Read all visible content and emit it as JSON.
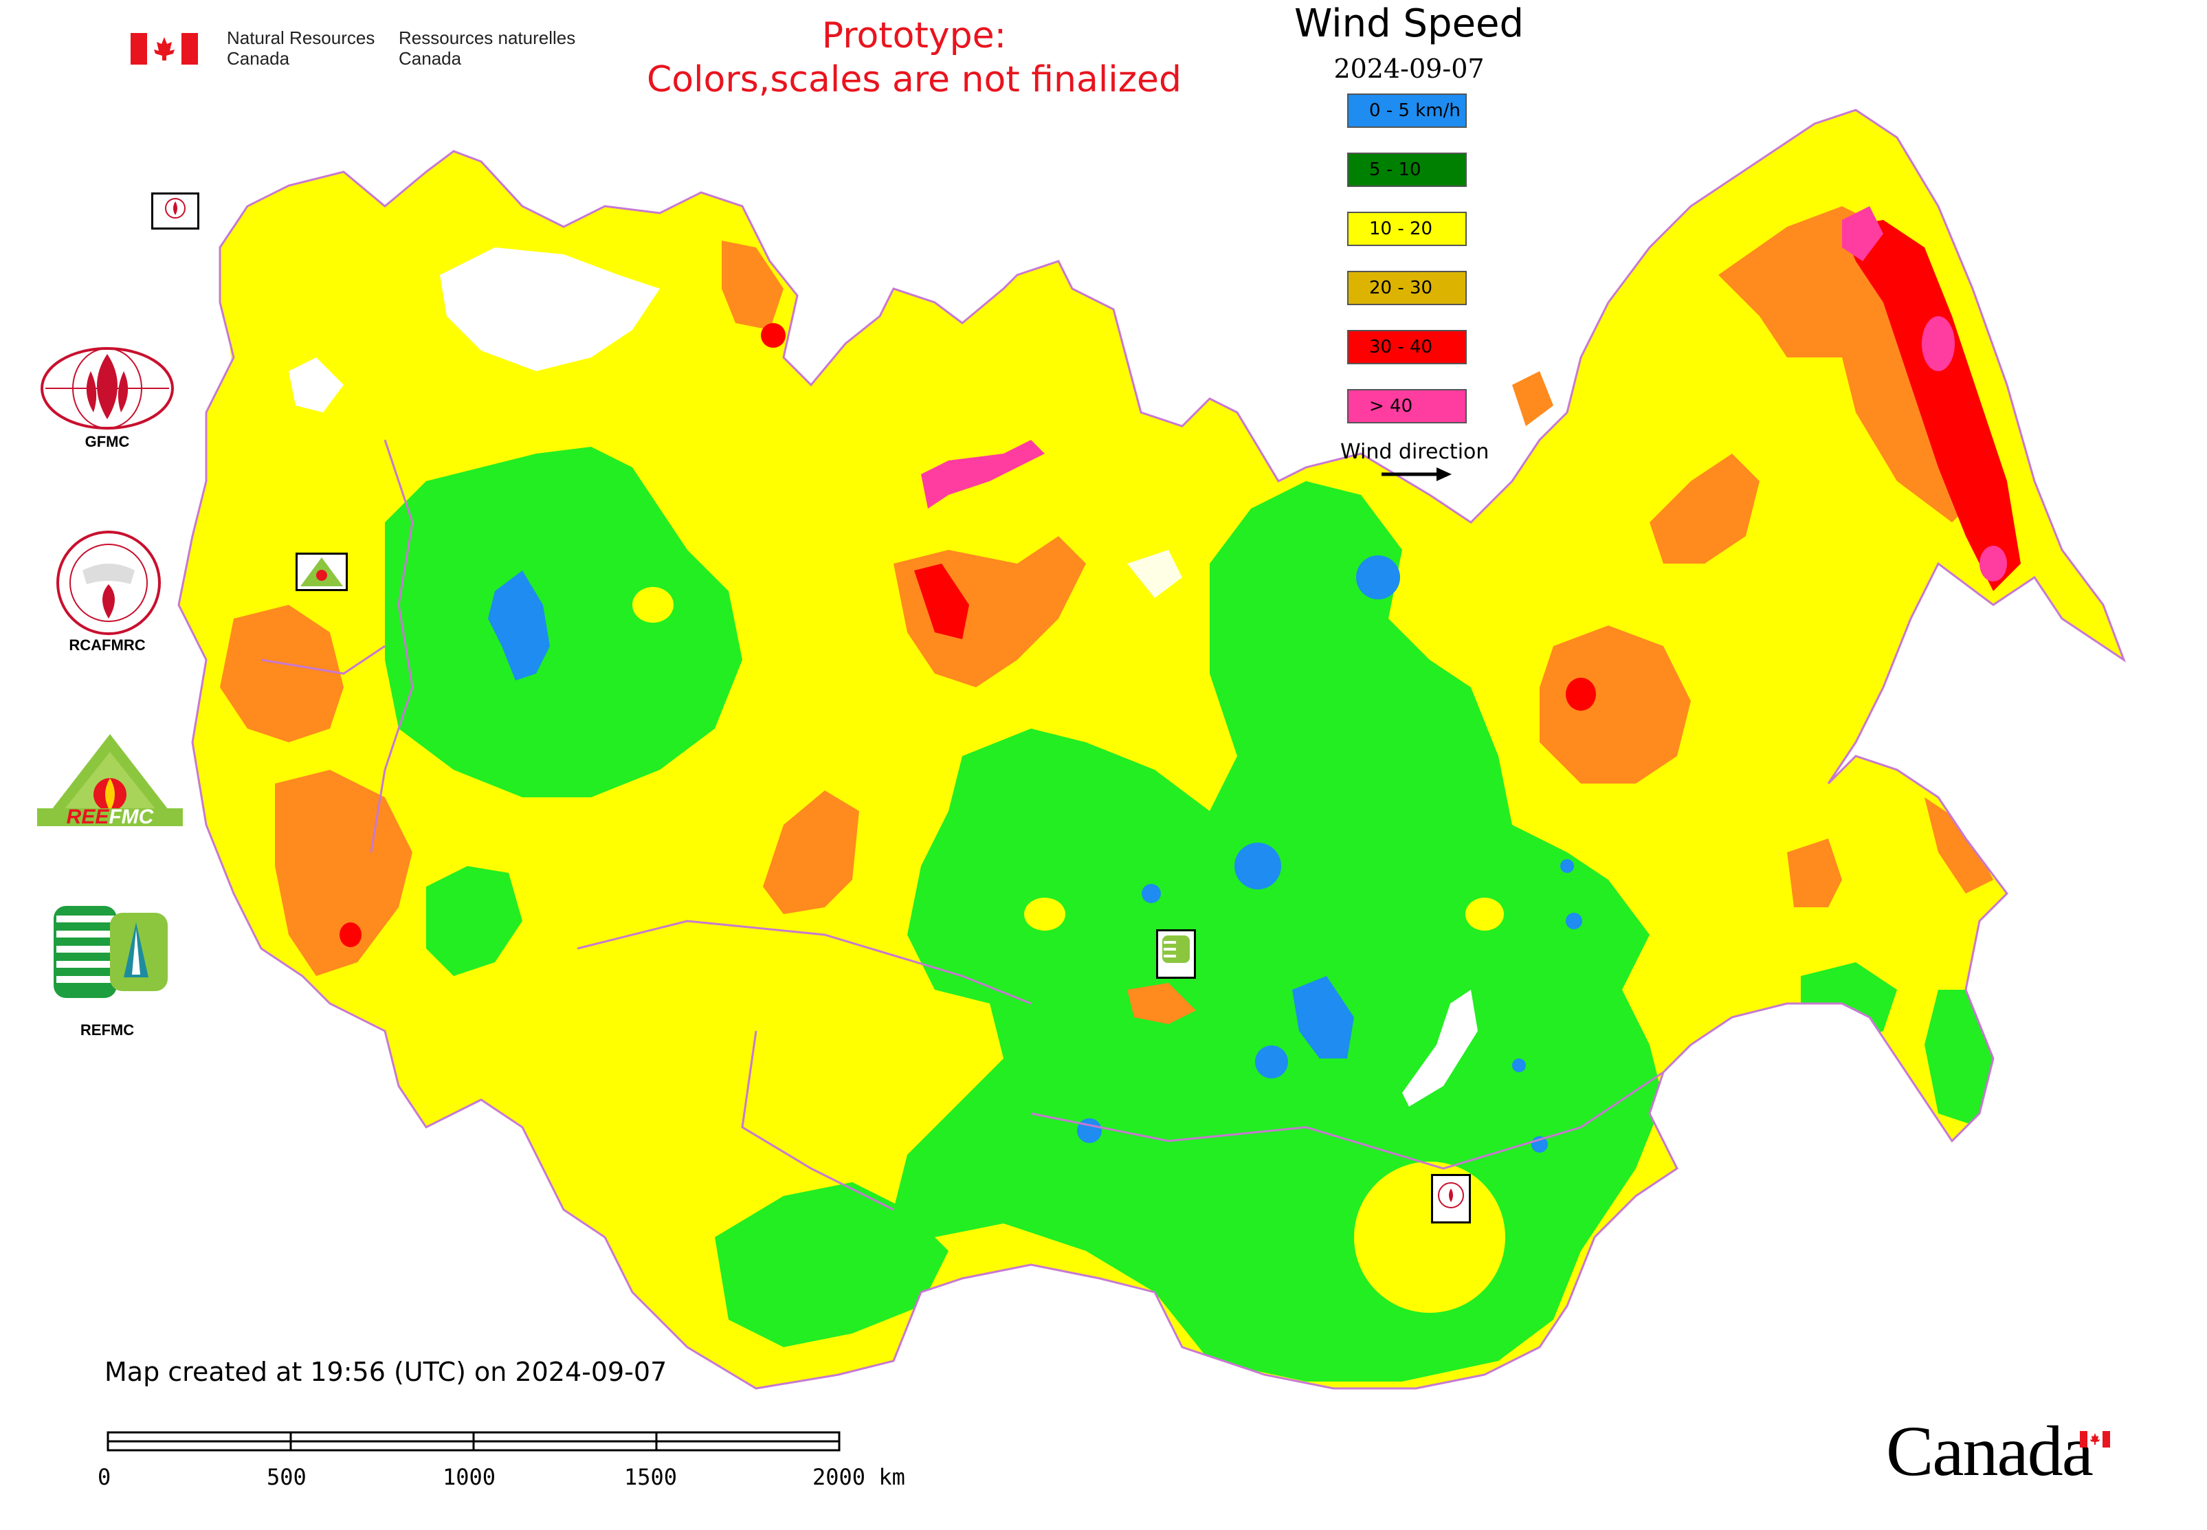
{
  "header": {
    "agency_en_line1": "Natural Resources",
    "agency_en_line2": "Canada",
    "agency_fr_line1": "Ressources naturelles",
    "agency_fr_line2": "Canada",
    "prototype_line1": "Prototype:",
    "prototype_line2": "Colors,scales are not finalized"
  },
  "legend": {
    "title": "Wind Speed",
    "date": "2024-09-07",
    "classes": [
      {
        "label": "0 - 5 km/h",
        "color": "#1e8cf0"
      },
      {
        "label": "5 - 10",
        "color": "#008000"
      },
      {
        "label": "10 - 20",
        "color": "#ffff00"
      },
      {
        "label": "20 - 30",
        "color": "#dcb400"
      },
      {
        "label": "30 - 40",
        "color": "#ff0000"
      },
      {
        "label": "> 40",
        "color": "#ff3ca0"
      }
    ],
    "wind_direction_label": "Wind direction"
  },
  "organizations": [
    {
      "name": "GFMC"
    },
    {
      "name": "RCAFMRC"
    },
    {
      "name": "REEFMC"
    },
    {
      "name": "REFMC"
    }
  ],
  "footer": {
    "created": "Map created at 19:56 (UTC) on 2024-09-07",
    "scale_ticks": [
      "0",
      "500",
      "1000",
      "1500",
      "2000 km"
    ],
    "wordmark": "Canada"
  },
  "palette": {
    "calm": "#1e8cf0",
    "light_green": "#22ee22",
    "yellow": "#ffff00",
    "orange": "#ff8a1e",
    "red": "#ff0000",
    "magenta": "#ff3ca0",
    "border": "#c878d2"
  }
}
